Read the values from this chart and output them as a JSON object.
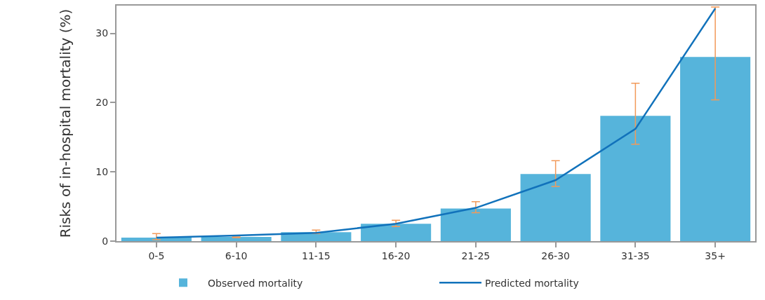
{
  "chart_data": {
    "type": "bar",
    "ylabel": "Risks of in-hospital mortality (%)",
    "categories": [
      "0-5",
      "6-10",
      "11-15",
      "16-20",
      "21-25",
      "26-30",
      "31-35",
      "35+"
    ],
    "series": [
      {
        "name": "Observed mortality",
        "color": "#56b4db",
        "values": [
          0.5,
          0.6,
          1.3,
          2.5,
          4.7,
          9.7,
          18.1,
          26.6
        ],
        "errors": [
          [
            0.2,
            1.1
          ],
          [
            0.5,
            0.6
          ],
          [
            1.1,
            1.6
          ],
          [
            2.1,
            3.0
          ],
          [
            4.1,
            5.7
          ],
          [
            7.9,
            11.6
          ],
          [
            14.0,
            22.8
          ],
          [
            20.4,
            33.8
          ]
        ]
      },
      {
        "name": "Predicted mortality",
        "type": "line",
        "color": "#1172bb",
        "values": [
          0.5,
          0.8,
          1.2,
          2.5,
          4.8,
          8.8,
          16.2,
          33.6
        ]
      }
    ],
    "ylim": [
      0,
      34
    ],
    "yticks": [
      0,
      10,
      20,
      30
    ],
    "grid": false,
    "legend": "bottom",
    "marker": "none",
    "line_style": "solid"
  }
}
